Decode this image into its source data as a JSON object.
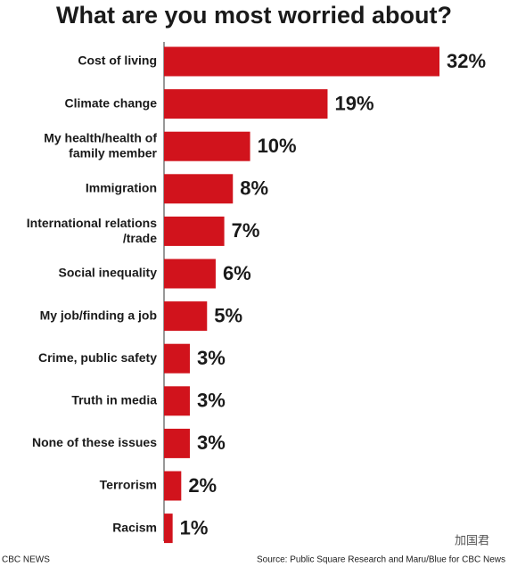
{
  "chart_data": {
    "type": "barh",
    "title": "What are you most worried about?",
    "categories": [
      "Cost of living",
      "Climate change",
      "My health/health of\nfamily member",
      "Immigration",
      "International relations\n/trade",
      "Social inequality",
      "My job/finding a job",
      "Crime, public safety",
      "Truth in media",
      "None of these issues",
      "Terrorism",
      "Racism"
    ],
    "values": [
      32,
      19,
      10,
      8,
      7,
      6,
      5,
      3,
      3,
      3,
      2,
      1
    ],
    "value_labels": [
      "32%",
      "19%",
      "10%",
      "8%",
      "7%",
      "6%",
      "5%",
      "3%",
      "3%",
      "3%",
      "2%",
      "1%"
    ],
    "color": "#d1131c",
    "credit": "CBC NEWS",
    "source": "Source: Public Square Research and Maru/Blue for CBC News",
    "watermark": "加国君"
  }
}
